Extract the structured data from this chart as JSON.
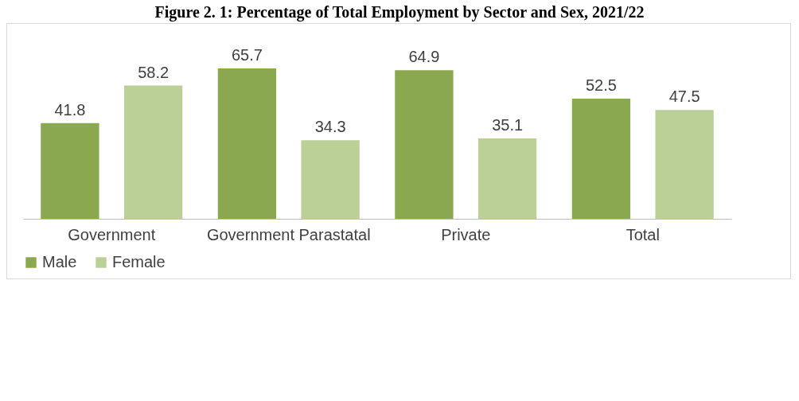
{
  "chart_data": {
    "type": "bar",
    "title": "Figure 2. 1: Percentage of Total Employment by Sector and Sex, 2021/22",
    "categories": [
      "Government",
      "Government Parastatal",
      "Private",
      "Total"
    ],
    "series": [
      {
        "name": "Male",
        "color": "#8aa84f",
        "values": [
          41.8,
          65.7,
          64.9,
          52.5
        ]
      },
      {
        "name": "Female",
        "color": "#bad096",
        "values": [
          58.2,
          34.3,
          35.1,
          47.5
        ]
      }
    ],
    "data_labels": true,
    "legend": "bottom"
  }
}
